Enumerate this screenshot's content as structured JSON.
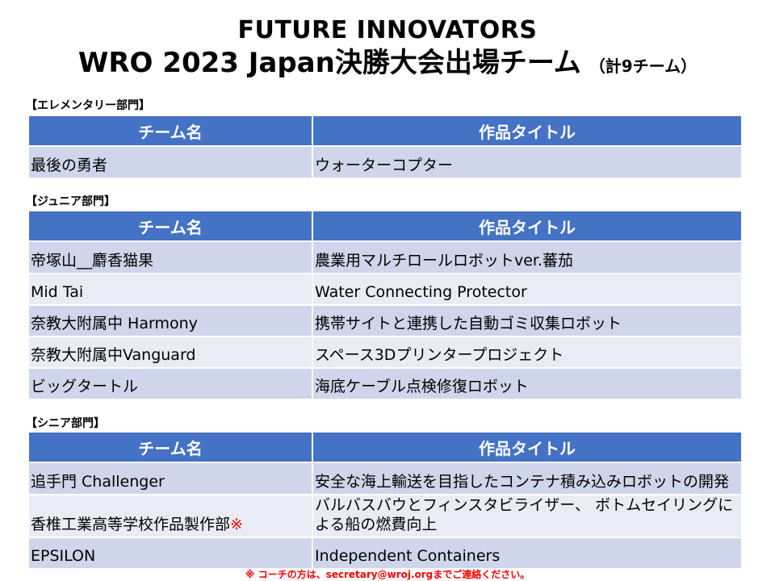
{
  "header": {
    "title_line1": "FUTURE INNOVATORS",
    "title_line2": "WRO 2023 Japan決勝大会出場チーム",
    "title_sub": "（計9チーム）"
  },
  "columns": {
    "team": "チーム名",
    "title": "作品タイトル"
  },
  "sections": {
    "elementary": {
      "label": "【エレメンタリー部門】",
      "rows": [
        {
          "team": "最後の勇者",
          "title": "ウォーターコプター"
        }
      ]
    },
    "junior": {
      "label": "【ジュニア部門】",
      "rows": [
        {
          "team": "帝塚山__麝香猫果",
          "title": "農業用マルチロールロボットver.蕃茄"
        },
        {
          "team": "Mid Tai",
          "title": "Water Connecting Protector"
        },
        {
          "team": "奈教大附属中 Harmony",
          "title": "携帯サイトと連携した自動ゴミ収集ロボット"
        },
        {
          "team": "奈教大附属中Vanguard",
          "title": "スペース3Dプリンタープロジェクト"
        },
        {
          "team": "ビッグタートル",
          "title": "海底ケーブル点検修復ロボット"
        }
      ]
    },
    "senior": {
      "label": "【シニア部門】",
      "rows": [
        {
          "team": "追手門 Challenger",
          "title": "安全な海上輸送を目指したコンテナ積み込みロボットの開発"
        },
        {
          "team": "香椎工業高等学校作品製作部",
          "team_mark": "※",
          "title": "バルバスバウとフィンスタビライザー、 ボトムセイリングによる船の燃費向上"
        },
        {
          "team": "EPSILON",
          "title": "Independent Containers"
        }
      ]
    }
  },
  "footer": {
    "note": "※ コーチの方は、secretary@wroj.orgまでご連絡ください。"
  },
  "colors": {
    "header_fill": "#4472c4",
    "row_dark": "#cfd5ea",
    "row_light": "#e9ebf5",
    "note": "#ff0000"
  }
}
